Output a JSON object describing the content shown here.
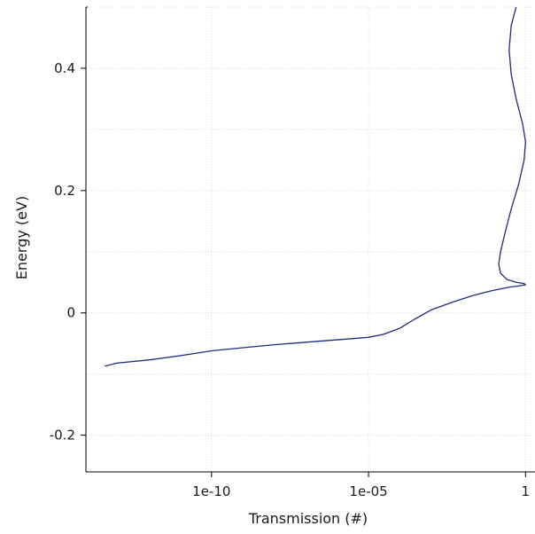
{
  "chart_data": {
    "type": "line",
    "title": "",
    "xlabel": "Transmission (#)",
    "ylabel": "Energy (eV)",
    "x_scale": "log",
    "xlim": [
      1e-14,
      2
    ],
    "ylim": [
      -0.26,
      0.5
    ],
    "x_ticks": [
      {
        "value": 1e-10,
        "label": "1e-10"
      },
      {
        "value": 1e-05,
        "label": "1e-05"
      },
      {
        "value": 1,
        "label": "1"
      }
    ],
    "y_ticks": [
      {
        "value": -0.2,
        "label": "-0.2"
      },
      {
        "value": 0,
        "label": "0"
      },
      {
        "value": 0.2,
        "label": "0.2"
      },
      {
        "value": 0.4,
        "label": "0.4"
      }
    ],
    "grid": true,
    "line_color": "#1f2a80",
    "series": [
      {
        "x": [
          4e-14,
          1e-13,
          1e-12,
          1e-11,
          1e-10,
          1e-09,
          1e-08,
          1e-07,
          1e-06,
          1e-05,
          3e-05,
          0.0001,
          0.0003,
          0.001,
          0.005,
          0.02,
          0.08,
          0.3,
          0.6,
          1.0,
          0.9,
          0.5,
          0.25,
          0.16,
          0.14,
          0.16,
          0.22,
          0.35,
          0.6,
          0.9,
          1.0,
          0.8,
          0.5,
          0.35,
          0.3,
          0.35,
          0.5
        ],
        "y": [
          -0.087,
          -0.082,
          -0.077,
          -0.07,
          -0.062,
          -0.057,
          -0.052,
          -0.048,
          -0.044,
          -0.04,
          -0.035,
          -0.025,
          -0.01,
          0.005,
          0.018,
          0.028,
          0.036,
          0.042,
          0.044,
          0.046,
          0.048,
          0.05,
          0.055,
          0.065,
          0.08,
          0.1,
          0.13,
          0.17,
          0.21,
          0.25,
          0.28,
          0.31,
          0.35,
          0.39,
          0.43,
          0.47,
          0.5
        ]
      }
    ]
  }
}
